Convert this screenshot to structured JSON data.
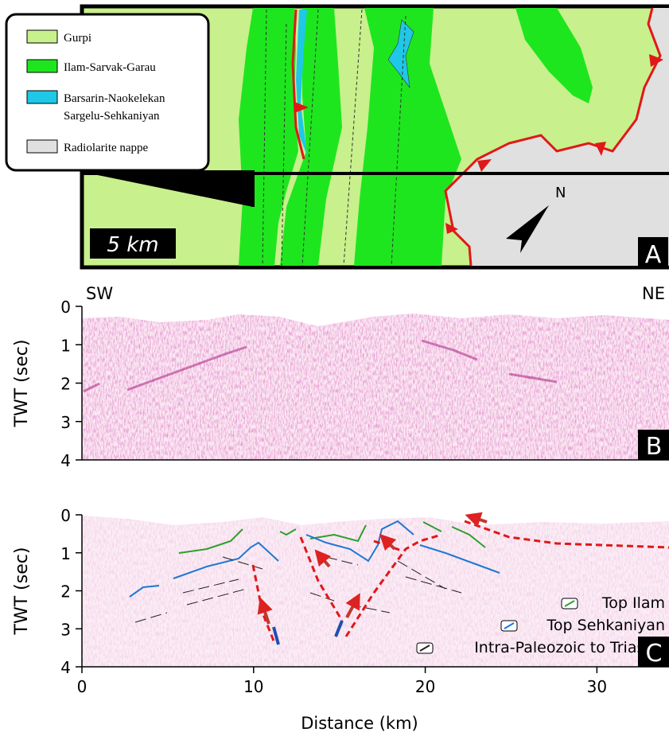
{
  "panel_a": {
    "legend": [
      "Gurpi",
      "Ilam-Sarvak-Garau",
      "Barsarin-Naokelekan",
      "Sargelu-Sehkaniyan",
      "Radiolarite nappe"
    ],
    "scale": "5 km",
    "north": "N",
    "label": "A"
  },
  "chart_data": [
    {
      "type": "seismic",
      "ylabel": "TWT (sec)",
      "ylim": [
        0,
        4
      ],
      "yticks": [
        0,
        1,
        2,
        3,
        4
      ],
      "left_note": "SW",
      "right_note": "NE",
      "panel_label": "B"
    },
    {
      "type": "seismic",
      "ylabel": "TWT (sec)",
      "xlabel": "Distance (km)",
      "xlim": [
        0,
        34.2
      ],
      "xticks": [
        0,
        10,
        20,
        30
      ],
      "ylim": [
        0,
        4
      ],
      "yticks": [
        0,
        1,
        2,
        3,
        4
      ],
      "panel_label": "C",
      "series": [
        {
          "name": "Top Ilam",
          "color": "#2ca02c"
        },
        {
          "name": "Top Sehkaniyan",
          "color": "#1f78d4"
        },
        {
          "name": "Intra-Paleozoic to Triassic",
          "color": "#222222"
        }
      ]
    }
  ]
}
